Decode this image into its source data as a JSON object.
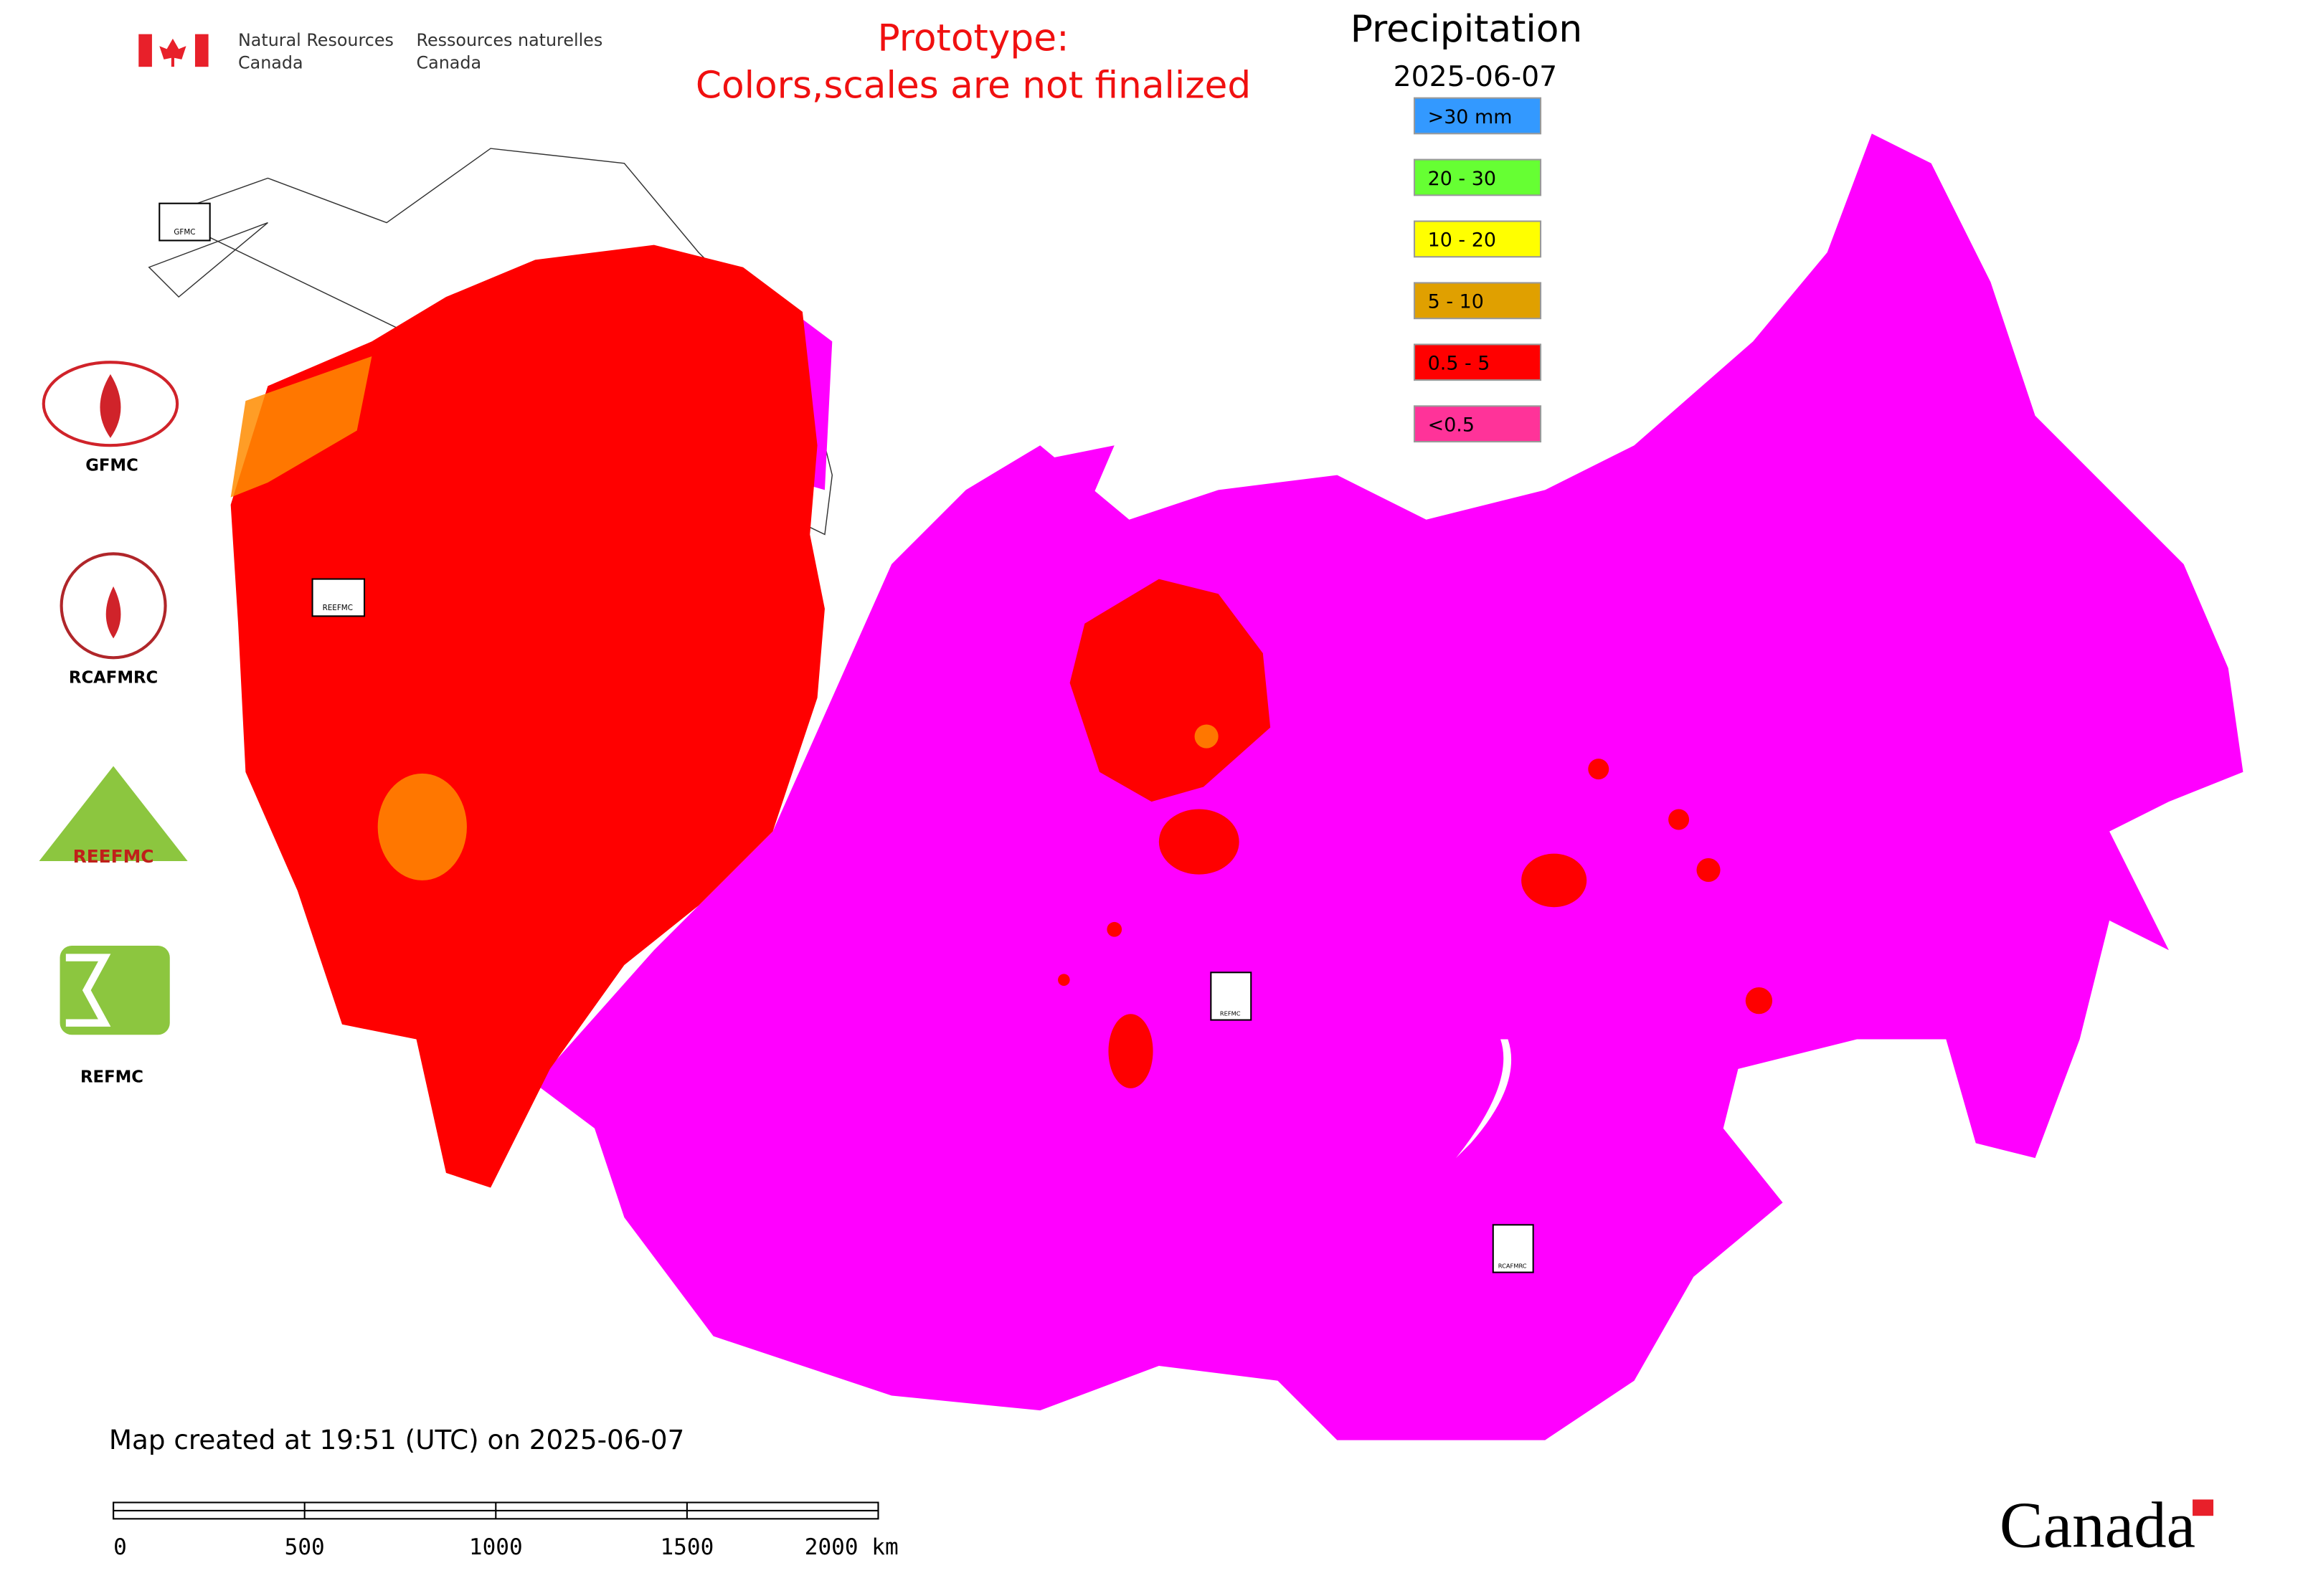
{
  "header": {
    "org_en": [
      "Natural Resources",
      "Canada"
    ],
    "org_fr": [
      "Ressources naturelles",
      "Canada"
    ]
  },
  "notice": [
    "Prototype:",
    "Colors,scales are not finalized"
  ],
  "legend": {
    "title": "Precipitation",
    "date": "2025-06-07",
    "items": [
      {
        "label": ">30 mm",
        "color": "#3399ff"
      },
      {
        "label": "20 - 30",
        "color": "#66ff33"
      },
      {
        "label": "10 - 20",
        "color": "#ffff00"
      },
      {
        "label": "5 - 10",
        "color": "#e0a000"
      },
      {
        "label": "0.5 - 5",
        "color": "#ff0000"
      },
      {
        "label": "<0.5",
        "color": "#ff3399"
      }
    ]
  },
  "logos": [
    "GFMC",
    "RCAFMRC",
    "REEFMC",
    "REFMC"
  ],
  "footer": {
    "created": "Map created at 19:51 (UTC) on 2025-06-07",
    "scale": [
      "0",
      "500",
      "1000",
      "1500",
      "2000 km"
    ],
    "wordmark": "Canada"
  }
}
